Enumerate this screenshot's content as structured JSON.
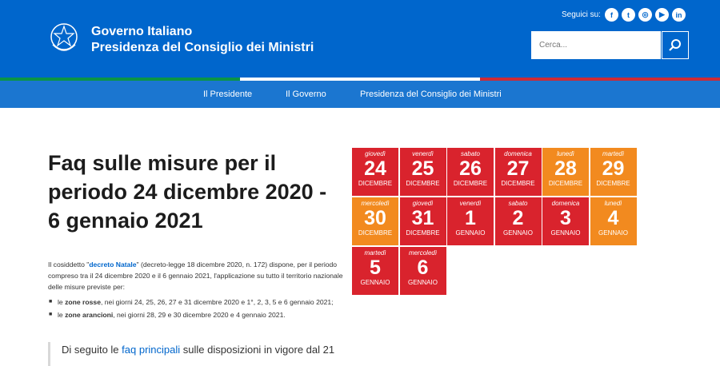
{
  "header": {
    "brand_line1": "Governo Italiano",
    "brand_line2": "Presidenza del Consiglio dei Ministri",
    "follow_label": "Seguici su:",
    "social": [
      {
        "icon": "facebook-icon",
        "glyph": "f"
      },
      {
        "icon": "twitter-icon",
        "glyph": "t"
      },
      {
        "icon": "instagram-icon",
        "glyph": "◎"
      },
      {
        "icon": "youtube-icon",
        "glyph": "▶"
      },
      {
        "icon": "linkedin-icon",
        "glyph": "in"
      }
    ],
    "search_placeholder": "Cerca..."
  },
  "colors": {
    "header_blue": "#0066cc",
    "nav_blue": "#1b76d0",
    "red_zone": "#d9232d",
    "orange_zone": "#f28a1f",
    "tricolor": [
      "#0a9446",
      "#ffffff",
      "#cc2b36"
    ]
  },
  "nav": {
    "items": [
      "Il Presidente",
      "Il Governo",
      "Presidenza del Consiglio dei Ministri"
    ]
  },
  "main": {
    "title": "Faq sulle misure per il periodo 24 dicembre 2020 - 6 gennaio 2021",
    "intro_a": "Il cosiddetto \"",
    "intro_link": "decreto Natale",
    "intro_b": "\" (decreto-legge 18 dicembre 2020, n. 172) dispone, per il periodo compreso tra il 24 dicembre 2020 e il 6 gennaio 2021, l'applicazione su tutto il territorio nazionale delle misure previste per:",
    "bullet1_a": "le ",
    "bullet1_b": "zone rosse",
    "bullet1_c": ", nei giorni 24, 25, 26, 27 e 31 dicembre 2020 e 1°, 2, 3, 5 e 6 gennaio 2021;",
    "bullet2_a": "le ",
    "bullet2_b": "zone arancioni",
    "bullet2_c": ", nei giorni 28, 29 e 30 dicembre 2020 e 4 gennaio 2021.",
    "quote_a": "Di seguito le ",
    "quote_link": "faq principali",
    "quote_b": " sulle disposizioni in vigore dal 21"
  },
  "calendar": [
    {
      "day": "giovedì",
      "num": "24",
      "month": "DICEMBRE",
      "zone": "red"
    },
    {
      "day": "venerdì",
      "num": "25",
      "month": "DICEMBRE",
      "zone": "red"
    },
    {
      "day": "sabato",
      "num": "26",
      "month": "DICEMBRE",
      "zone": "red"
    },
    {
      "day": "domenica",
      "num": "27",
      "month": "DICEMBRE",
      "zone": "red"
    },
    {
      "day": "lunedì",
      "num": "28",
      "month": "DICEMBRE",
      "zone": "orange"
    },
    {
      "day": "martedì",
      "num": "29",
      "month": "DICEMBRE",
      "zone": "orange"
    },
    {
      "day": "mercoledì",
      "num": "30",
      "month": "DICEMBRE",
      "zone": "orange"
    },
    {
      "day": "giovedì",
      "num": "31",
      "month": "DICEMBRE",
      "zone": "red"
    },
    {
      "day": "venerdì",
      "num": "1",
      "month": "GENNAIO",
      "zone": "red"
    },
    {
      "day": "sabato",
      "num": "2",
      "month": "GENNAIO",
      "zone": "red"
    },
    {
      "day": "domenica",
      "num": "3",
      "month": "GENNAIO",
      "zone": "red"
    },
    {
      "day": "lunedì",
      "num": "4",
      "month": "GENNAIO",
      "zone": "orange"
    },
    {
      "day": "martedì",
      "num": "5",
      "month": "GENNAIO",
      "zone": "red"
    },
    {
      "day": "mercoledì",
      "num": "6",
      "month": "GENNAIO",
      "zone": "red"
    }
  ]
}
